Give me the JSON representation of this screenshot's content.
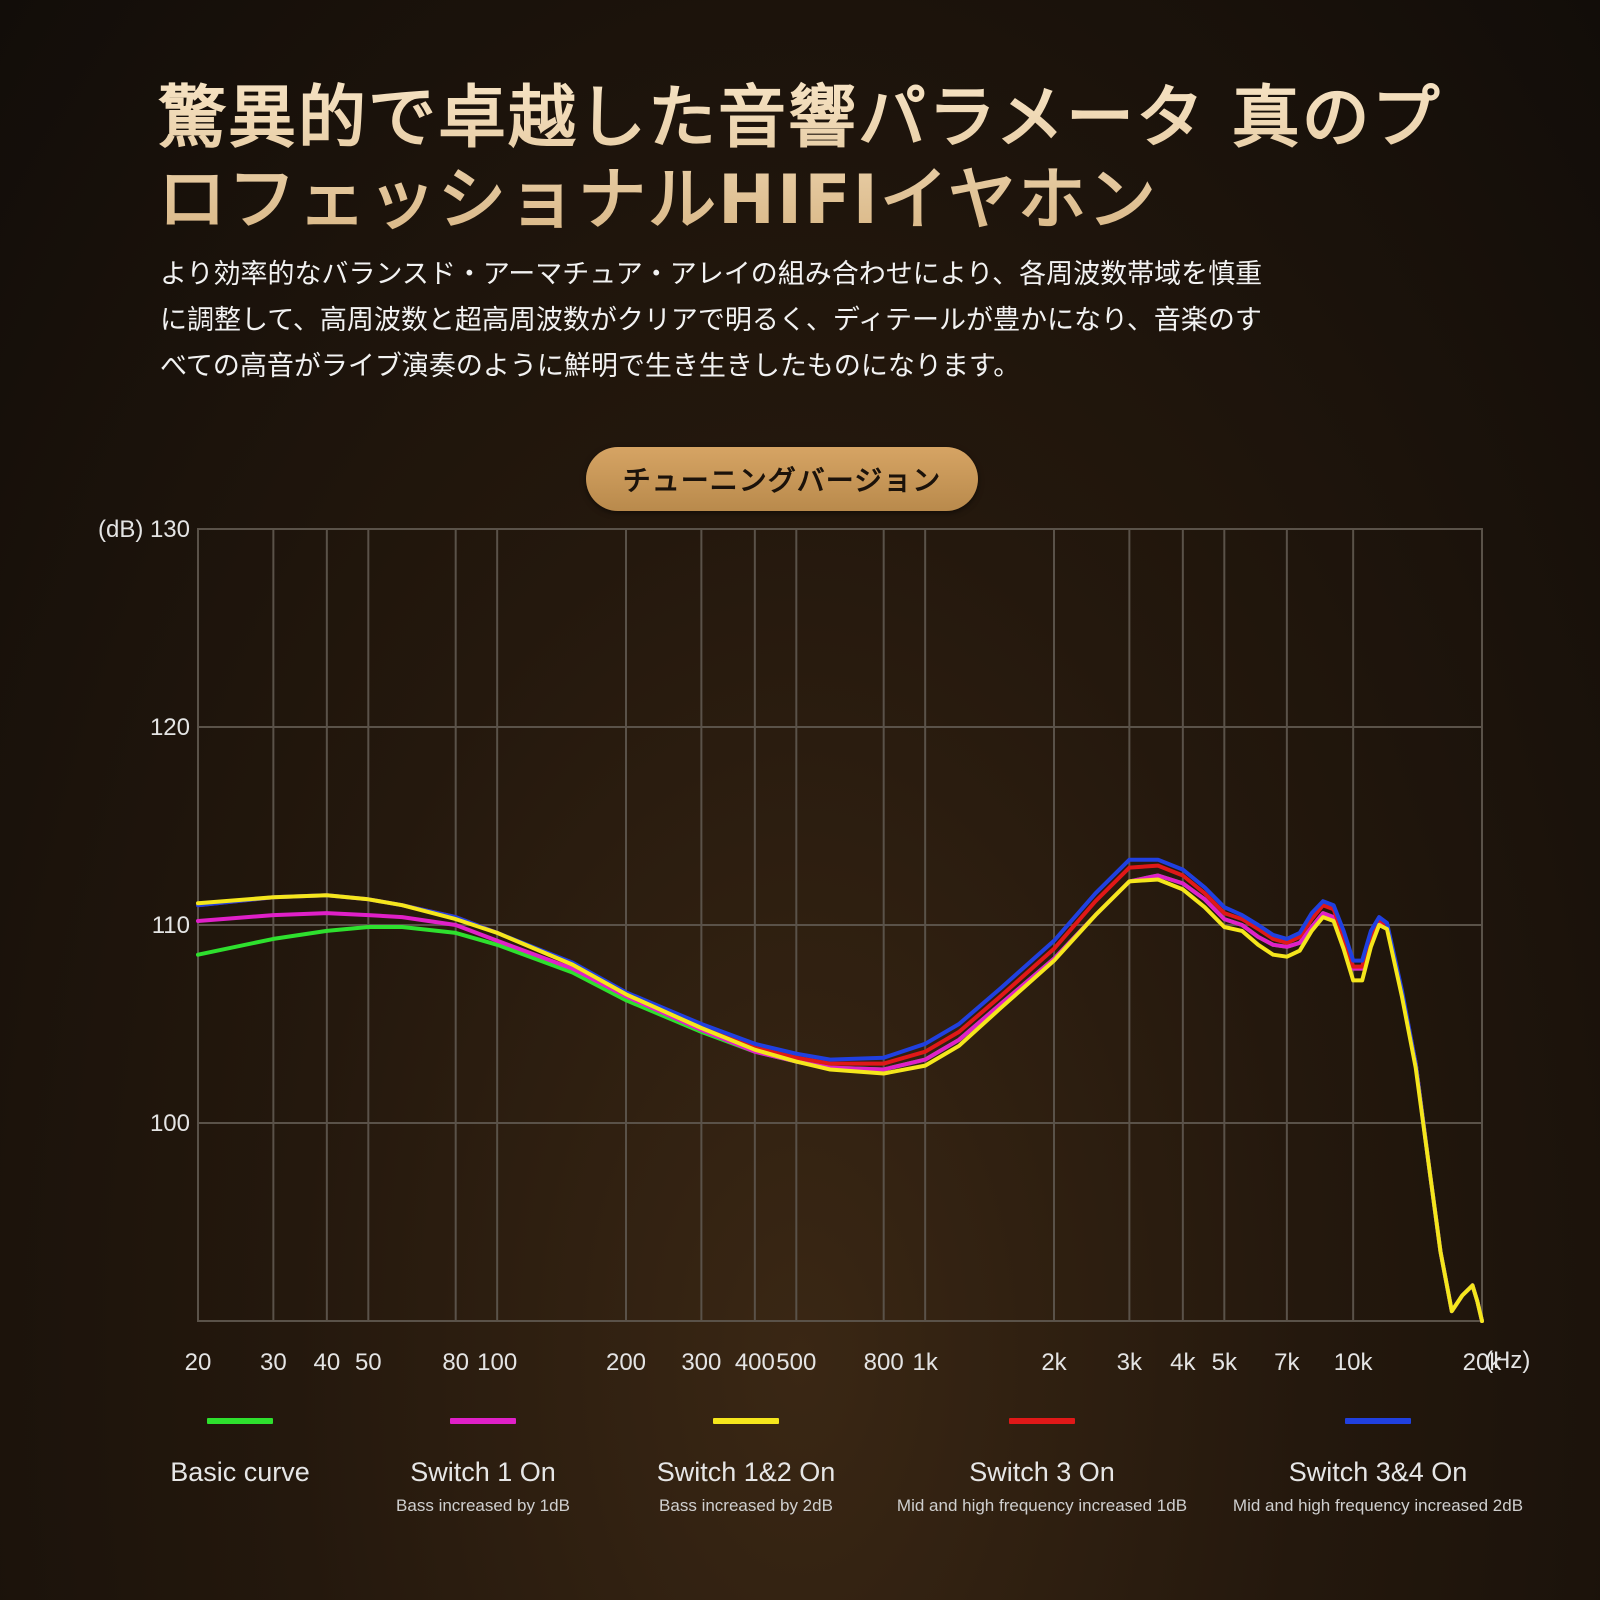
{
  "header": {
    "title_lines": [
      "驚異的で卓越した音響パラメータ 真のプ",
      "ロフェッショナルHIFIイヤホン"
    ],
    "body_lines": [
      "より効率的なバランスド・アーマチュア・アレイの組み合わせにより、各周波数帯域を慎重",
      "に調整して、高周波数と超高周波数がクリアで明るく、ディテールが豊かになり、音楽のす",
      "べての高音がライブ演奏のように鮮明で生き生きしたものになります。"
    ]
  },
  "badge": {
    "label": "チューニングバージョン"
  },
  "chart_data": {
    "type": "line",
    "ylabel": "(dB)",
    "xlabel": "(Hz)",
    "x_scale": "log",
    "xlim": [
      20,
      20000
    ],
    "ylim": [
      90,
      130
    ],
    "y_ticks": [
      100,
      110,
      120,
      130
    ],
    "x_gridlines": [
      20,
      30,
      40,
      50,
      80,
      100,
      200,
      300,
      400,
      500,
      800,
      1000,
      2000,
      3000,
      4000,
      5000,
      7000,
      10000,
      20000
    ],
    "x_tick_labels": [
      {
        "x": 20,
        "label": "20"
      },
      {
        "x": 30,
        "label": "30"
      },
      {
        "x": 40,
        "label": "40"
      },
      {
        "x": 50,
        "label": "50"
      },
      {
        "x": 80,
        "label": "80"
      },
      {
        "x": 100,
        "label": "100"
      },
      {
        "x": 200,
        "label": "200"
      },
      {
        "x": 300,
        "label": "300"
      },
      {
        "x": 400,
        "label": "400"
      },
      {
        "x": 500,
        "label": "500"
      },
      {
        "x": 800,
        "label": "800"
      },
      {
        "x": 1000,
        "label": "1k"
      },
      {
        "x": 2000,
        "label": "2k"
      },
      {
        "x": 3000,
        "label": "3k"
      },
      {
        "x": 4000,
        "label": "4k"
      },
      {
        "x": 5000,
        "label": "5k"
      },
      {
        "x": 7000,
        "label": "7k"
      },
      {
        "x": 10000,
        "label": "10k"
      },
      {
        "x": 20000,
        "label": "20k"
      }
    ],
    "grid": true,
    "legend_position": "bottom",
    "series": [
      {
        "name": "Basic curve",
        "description": "",
        "color": "#2ee02e",
        "points": [
          [
            20,
            108.5
          ],
          [
            30,
            109.3
          ],
          [
            40,
            109.7
          ],
          [
            50,
            109.9
          ],
          [
            60,
            109.9
          ],
          [
            80,
            109.6
          ],
          [
            100,
            109.0
          ],
          [
            150,
            107.6
          ],
          [
            200,
            106.2
          ],
          [
            300,
            104.6
          ],
          [
            400,
            103.6
          ],
          [
            500,
            103.1
          ],
          [
            600,
            102.8
          ],
          [
            800,
            102.7
          ],
          [
            1000,
            103.2
          ],
          [
            1200,
            104.2
          ],
          [
            1500,
            106.0
          ],
          [
            2000,
            108.3
          ],
          [
            2500,
            110.5
          ],
          [
            3000,
            112.2
          ],
          [
            3500,
            112.5
          ],
          [
            4000,
            112.1
          ],
          [
            4500,
            111.3
          ],
          [
            5000,
            110.3
          ],
          [
            5500,
            110.0
          ],
          [
            6000,
            109.4
          ],
          [
            6500,
            109.0
          ],
          [
            7000,
            108.9
          ],
          [
            7500,
            109.1
          ],
          [
            8000,
            109.9
          ],
          [
            8500,
            110.6
          ],
          [
            9000,
            110.4
          ],
          [
            9500,
            109.1
          ],
          [
            10000,
            107.8
          ],
          [
            10500,
            107.8
          ],
          [
            11000,
            109.3
          ],
          [
            11500,
            110.2
          ],
          [
            12000,
            109.9
          ],
          [
            13000,
            106.5
          ],
          [
            14000,
            103.0
          ],
          [
            15000,
            98.0
          ],
          [
            16000,
            93.5
          ],
          [
            17000,
            90.5
          ],
          [
            18000,
            91.3
          ],
          [
            19000,
            91.8
          ],
          [
            19500,
            91.0
          ],
          [
            20000,
            90.0
          ]
        ]
      },
      {
        "name": "Switch 1 On",
        "description": "Bass increased by 1dB",
        "color": "#e020c8",
        "points": [
          [
            20,
            110.2
          ],
          [
            30,
            110.5
          ],
          [
            40,
            110.6
          ],
          [
            50,
            110.5
          ],
          [
            60,
            110.4
          ],
          [
            80,
            110.0
          ],
          [
            100,
            109.2
          ],
          [
            150,
            107.8
          ],
          [
            200,
            106.4
          ],
          [
            300,
            104.7
          ],
          [
            400,
            103.6
          ],
          [
            500,
            103.1
          ],
          [
            600,
            102.8
          ],
          [
            800,
            102.7
          ],
          [
            1000,
            103.2
          ],
          [
            1200,
            104.2
          ],
          [
            1500,
            106.0
          ],
          [
            2000,
            108.3
          ],
          [
            2500,
            110.5
          ],
          [
            3000,
            112.2
          ],
          [
            3500,
            112.5
          ],
          [
            4000,
            112.1
          ],
          [
            4500,
            111.3
          ],
          [
            5000,
            110.3
          ],
          [
            5500,
            110.0
          ],
          [
            6000,
            109.4
          ],
          [
            6500,
            109.0
          ],
          [
            7000,
            108.9
          ],
          [
            7500,
            109.1
          ],
          [
            8000,
            109.9
          ],
          [
            8500,
            110.6
          ],
          [
            9000,
            110.4
          ],
          [
            9500,
            109.1
          ],
          [
            10000,
            107.8
          ],
          [
            10500,
            107.8
          ],
          [
            11000,
            109.3
          ],
          [
            11500,
            110.2
          ],
          [
            12000,
            109.9
          ],
          [
            13000,
            106.5
          ],
          [
            14000,
            103.0
          ],
          [
            15000,
            98.0
          ],
          [
            16000,
            93.5
          ],
          [
            17000,
            90.5
          ],
          [
            18000,
            91.3
          ],
          [
            19000,
            91.8
          ],
          [
            19500,
            91.0
          ],
          [
            20000,
            90.0
          ]
        ]
      },
      {
        "name": "Switch 3 On",
        "description": "Mid and high frequency increased 1dB",
        "color": "#e01818",
        "points": [
          [
            20,
            111.0
          ],
          [
            30,
            111.4
          ],
          [
            40,
            111.5
          ],
          [
            50,
            111.3
          ],
          [
            60,
            111.0
          ],
          [
            80,
            110.4
          ],
          [
            100,
            109.6
          ],
          [
            150,
            108.0
          ],
          [
            200,
            106.5
          ],
          [
            300,
            104.9
          ],
          [
            400,
            103.8
          ],
          [
            500,
            103.3
          ],
          [
            600,
            103.0
          ],
          [
            800,
            103.0
          ],
          [
            1000,
            103.6
          ],
          [
            1200,
            104.6
          ],
          [
            1500,
            106.4
          ],
          [
            2000,
            108.8
          ],
          [
            2500,
            111.2
          ],
          [
            3000,
            112.9
          ],
          [
            3500,
            113.0
          ],
          [
            4000,
            112.5
          ],
          [
            4500,
            111.6
          ],
          [
            5000,
            110.6
          ],
          [
            5500,
            110.3
          ],
          [
            6000,
            109.8
          ],
          [
            6500,
            109.3
          ],
          [
            7000,
            109.1
          ],
          [
            7500,
            109.4
          ],
          [
            8000,
            110.3
          ],
          [
            8500,
            111.0
          ],
          [
            9000,
            110.8
          ],
          [
            9500,
            109.4
          ],
          [
            10000,
            107.9
          ],
          [
            10500,
            107.9
          ],
          [
            11000,
            109.5
          ],
          [
            11500,
            110.3
          ],
          [
            12000,
            110.0
          ],
          [
            13000,
            106.6
          ],
          [
            14000,
            103.0
          ],
          [
            15000,
            98.0
          ],
          [
            16000,
            93.5
          ],
          [
            17000,
            90.5
          ],
          [
            18000,
            91.3
          ],
          [
            19000,
            91.8
          ],
          [
            19500,
            91.0
          ],
          [
            20000,
            90.0
          ]
        ]
      },
      {
        "name": "Switch 3&4 On",
        "description": "Mid and high frequency increased 2dB",
        "color": "#2040e0",
        "points": [
          [
            20,
            111.0
          ],
          [
            30,
            111.4
          ],
          [
            40,
            111.5
          ],
          [
            50,
            111.3
          ],
          [
            60,
            111.0
          ],
          [
            80,
            110.4
          ],
          [
            100,
            109.6
          ],
          [
            150,
            108.1
          ],
          [
            200,
            106.6
          ],
          [
            300,
            105.0
          ],
          [
            400,
            104.0
          ],
          [
            500,
            103.5
          ],
          [
            600,
            103.2
          ],
          [
            800,
            103.3
          ],
          [
            1000,
            104.0
          ],
          [
            1200,
            105.0
          ],
          [
            1500,
            106.8
          ],
          [
            2000,
            109.2
          ],
          [
            2500,
            111.6
          ],
          [
            3000,
            113.3
          ],
          [
            3500,
            113.3
          ],
          [
            4000,
            112.8
          ],
          [
            4500,
            111.9
          ],
          [
            5000,
            110.9
          ],
          [
            5500,
            110.5
          ],
          [
            6000,
            110.0
          ],
          [
            6500,
            109.5
          ],
          [
            7000,
            109.3
          ],
          [
            7500,
            109.6
          ],
          [
            8000,
            110.6
          ],
          [
            8500,
            111.2
          ],
          [
            9000,
            111.0
          ],
          [
            9500,
            109.7
          ],
          [
            10000,
            108.2
          ],
          [
            10500,
            108.2
          ],
          [
            11000,
            109.7
          ],
          [
            11500,
            110.4
          ],
          [
            12000,
            110.1
          ],
          [
            13000,
            106.7
          ],
          [
            14000,
            103.0
          ],
          [
            15000,
            98.0
          ],
          [
            16000,
            93.5
          ],
          [
            17000,
            90.5
          ],
          [
            18000,
            91.3
          ],
          [
            19000,
            91.8
          ],
          [
            19500,
            91.0
          ],
          [
            20000,
            90.0
          ]
        ]
      },
      {
        "name": "Switch 1&2 On",
        "description": "Bass increased by 2dB",
        "color": "#f5e61c",
        "points": [
          [
            20,
            111.1
          ],
          [
            30,
            111.4
          ],
          [
            40,
            111.5
          ],
          [
            50,
            111.3
          ],
          [
            60,
            111.0
          ],
          [
            80,
            110.3
          ],
          [
            100,
            109.6
          ],
          [
            150,
            108.0
          ],
          [
            200,
            106.5
          ],
          [
            300,
            104.8
          ],
          [
            400,
            103.7
          ],
          [
            500,
            103.1
          ],
          [
            600,
            102.7
          ],
          [
            800,
            102.5
          ],
          [
            1000,
            102.9
          ],
          [
            1200,
            103.9
          ],
          [
            1500,
            105.8
          ],
          [
            2000,
            108.2
          ],
          [
            2500,
            110.5
          ],
          [
            3000,
            112.2
          ],
          [
            3500,
            112.3
          ],
          [
            4000,
            111.8
          ],
          [
            4500,
            110.9
          ],
          [
            5000,
            109.9
          ],
          [
            5500,
            109.7
          ],
          [
            6000,
            109.0
          ],
          [
            6500,
            108.5
          ],
          [
            7000,
            108.4
          ],
          [
            7500,
            108.7
          ],
          [
            8000,
            109.7
          ],
          [
            8500,
            110.4
          ],
          [
            9000,
            110.2
          ],
          [
            9500,
            108.8
          ],
          [
            10000,
            107.2
          ],
          [
            10500,
            107.2
          ],
          [
            11000,
            108.9
          ],
          [
            11500,
            110.0
          ],
          [
            12000,
            109.8
          ],
          [
            13000,
            106.4
          ],
          [
            14000,
            102.8
          ],
          [
            15000,
            98.0
          ],
          [
            16000,
            93.5
          ],
          [
            17000,
            90.5
          ],
          [
            18000,
            91.3
          ],
          [
            19000,
            91.8
          ],
          [
            19500,
            91.0
          ],
          [
            20000,
            90.0
          ]
        ]
      }
    ],
    "legend": [
      {
        "name": "Basic curve",
        "description": "",
        "color": "#2ee02e"
      },
      {
        "name": "Switch 1 On",
        "description": "Bass increased by 1dB",
        "color": "#e020c8"
      },
      {
        "name": "Switch 1&2 On",
        "description": "Bass increased by 2dB",
        "color": "#f5e61c"
      },
      {
        "name": "Switch 3 On",
        "description": "Mid and high frequency increased 1dB",
        "color": "#e01818"
      },
      {
        "name": "Switch 3&4 On",
        "description": "Mid and high frequency increased 2dB",
        "color": "#2040e0"
      }
    ]
  }
}
